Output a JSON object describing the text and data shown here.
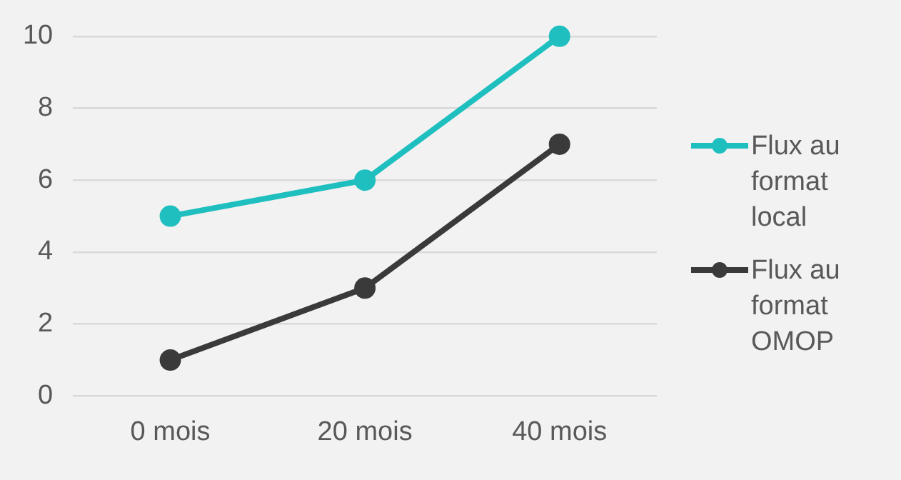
{
  "chart_data": {
    "type": "line",
    "categories": [
      "0 mois",
      "20 mois",
      "40 mois"
    ],
    "series": [
      {
        "name": "Flux au format local",
        "color": "#1fbfbf",
        "values": [
          5,
          6,
          10
        ]
      },
      {
        "name": "Flux au format OMOP",
        "color": "#3a3a3a",
        "values": [
          1,
          3,
          7
        ]
      }
    ],
    "ylim": [
      0,
      10
    ],
    "yticks": [
      0,
      2,
      4,
      6,
      8,
      10
    ],
    "grid": "y",
    "legend": "right",
    "marker": "circle",
    "line_style": "solid"
  }
}
